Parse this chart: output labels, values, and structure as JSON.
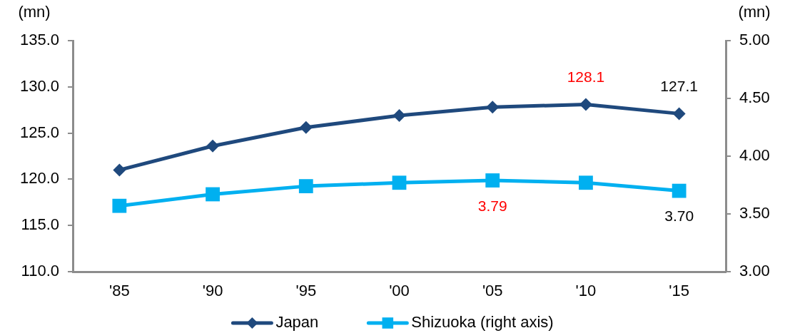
{
  "chart_data": {
    "type": "line",
    "categories": [
      "'85",
      "'90",
      "'95",
      "'00",
      "'05",
      "'10",
      "'15"
    ],
    "ylabel": "(mn)",
    "y2label": "(mn)",
    "series": [
      {
        "name": "Japan",
        "color": "#1f497d",
        "marker": "diamond",
        "values": [
          121.0,
          123.6,
          125.6,
          126.9,
          127.8,
          128.1,
          127.1
        ],
        "value_labels": [
          null,
          null,
          null,
          null,
          null,
          "128.1",
          "127.1"
        ]
      },
      {
        "name": "Shizuoka (right axis)",
        "color": "#00b0f0",
        "marker": "square",
        "axis": "y2",
        "values": [
          3.57,
          3.67,
          3.74,
          3.77,
          3.79,
          3.77,
          3.7
        ],
        "value_labels": [
          null,
          null,
          null,
          null,
          "3.79",
          null,
          "3.70"
        ]
      }
    ],
    "ylim": [
      110,
      135
    ],
    "yticks": [
      {
        "value": 110,
        "label": "110.0"
      },
      {
        "value": 115,
        "label": "115.0"
      },
      {
        "value": 120,
        "label": "120.0"
      },
      {
        "value": 125,
        "label": "125.0"
      },
      {
        "value": 130,
        "label": "130.0"
      },
      {
        "value": 135,
        "label": "135.0"
      }
    ],
    "y2lim": [
      3,
      5
    ],
    "y2ticks": [
      {
        "value": 3,
        "label": "3.00"
      },
      {
        "value": 3.5,
        "label": "3.50"
      },
      {
        "value": 4,
        "label": "4.00"
      },
      {
        "value": 4.5,
        "label": "4.50"
      },
      {
        "value": 5,
        "label": "5.00"
      }
    ],
    "grid": false,
    "legend": "bottom",
    "line_style": "solid"
  }
}
